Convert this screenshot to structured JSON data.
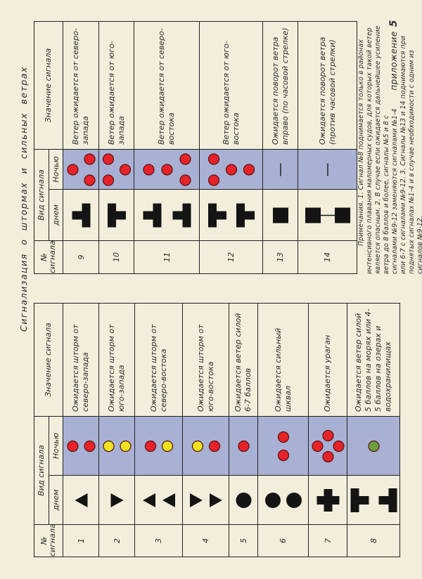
{
  "title": "Сигнализация о штормах и сильных ветрах",
  "appendix": {
    "label": "приложение",
    "number": "5"
  },
  "headers": {
    "number": "№ сигнала",
    "kind": "Вид сигнала",
    "day": "днем",
    "night": "Ночью",
    "meaning": "Значение сигнала"
  },
  "colors": {
    "red": "#e52329",
    "yellow": "#f1e21e",
    "green": "#6b9f3e",
    "night_background": "#a8b1d3",
    "shape": "#141414"
  },
  "left": {
    "rows": [
      {
        "number": "1",
        "day": {
          "shapes": [
            "cone-up"
          ],
          "layout": "single"
        },
        "night": {
          "lights": [
            "red",
            "red"
          ],
          "layout": "vertical"
        },
        "meaning": "Ожидается шторм от северо-запада"
      },
      {
        "number": "2",
        "day": {
          "shapes": [
            "cone-down"
          ],
          "layout": "single"
        },
        "night": {
          "lights": [
            "yellow",
            "yellow"
          ],
          "layout": "vertical"
        },
        "meaning": "Ожидается шторм от юго-запада"
      },
      {
        "number": "3",
        "day": {
          "shapes": [
            "cone-up",
            "cone-up"
          ],
          "layout": "vertical"
        },
        "night": {
          "lights": [
            "red",
            "yellow"
          ],
          "layout": "vertical"
        },
        "meaning": "Ожидается шторм от северо-востока"
      },
      {
        "number": "4",
        "day": {
          "shapes": [
            "cone-down",
            "cone-down"
          ],
          "layout": "vertical"
        },
        "night": {
          "lights": [
            "yellow",
            "red"
          ],
          "layout": "vertical"
        },
        "meaning": "Ожидается шторм от юго-востока"
      },
      {
        "number": "5",
        "day": {
          "shapes": [
            "ball"
          ],
          "layout": "single"
        },
        "night": {
          "lights": [
            "red"
          ],
          "layout": "single"
        },
        "meaning": "Ожидается ветер силой 6-7 баллов"
      },
      {
        "number": "6",
        "day": {
          "shapes": [
            "ball",
            "ball"
          ],
          "layout": "vertical"
        },
        "night": {
          "lights": [
            "red",
            "red"
          ],
          "layout": "horizontal"
        },
        "meaning": "Ожидается сильный шквал"
      },
      {
        "number": "7",
        "day": {
          "shapes": [
            "cross"
          ],
          "layout": "single"
        },
        "night": {
          "lights": [
            "red",
            "red",
            "red",
            "red"
          ],
          "layout": "diamond"
        },
        "meaning": "Ожидается ураган"
      },
      {
        "number": "8",
        "day": {
          "shapes": [
            "t-shape",
            "inverted-t-shape"
          ],
          "layout": "vertical"
        },
        "night": {
          "lights": [
            "green"
          ],
          "layout": "single"
        },
        "meaning": "Ожидается ветер силой 5 баллов на морях или 4-5 баллов на озерах и водохранилищах"
      }
    ]
  },
  "right": {
    "rows": [
      {
        "number": "9",
        "day": {
          "shapes": [
            "inverted-t-shape"
          ],
          "layout": "single"
        },
        "night": {
          "lights": [
            "red",
            "red",
            "red"
          ],
          "layout": "triangle-up"
        },
        "meaning": "Ветер ожидается от северо-запада"
      },
      {
        "number": "10",
        "day": {
          "shapes": [
            "t-shape"
          ],
          "layout": "single"
        },
        "night": {
          "lights": [
            "red",
            "red",
            "red"
          ],
          "layout": "triangle-down"
        },
        "meaning": "Ветер ожидается от юго-запада"
      },
      {
        "number": "11",
        "day": {
          "shapes": [
            "inverted-t-shape",
            "inverted-t-shape"
          ],
          "layout": "vertical"
        },
        "night": {
          "lights": [
            "red",
            "red",
            "red",
            "red"
          ],
          "layout": "two-over-pair"
        },
        "meaning": "Ветер ожидается от северо-востока"
      },
      {
        "number": "12",
        "day": {
          "shapes": [
            "t-shape",
            "t-shape"
          ],
          "layout": "vertical"
        },
        "night": {
          "lights": [
            "red",
            "red",
            "red",
            "red"
          ],
          "layout": "pair-over-two"
        },
        "meaning": "Ветер ожидается от юго-востока"
      },
      {
        "number": "13",
        "day": {
          "shapes": [
            "square"
          ],
          "layout": "single"
        },
        "night": {
          "lights": [],
          "layout": "none"
        },
        "meaning": "Ожидается поворот ветра вправо (по часовой стрелке)"
      },
      {
        "number": "14",
        "day": {
          "shapes": [
            "square",
            "square"
          ],
          "layout": "vertical-joined"
        },
        "night": {
          "lights": [],
          "layout": "none"
        },
        "meaning": "Ожидается поворот ветра (против часовой стрелки)"
      }
    ]
  },
  "notes": "Примечания. 1. Сигнал №8 поднимается только в районах интенсивного плавания маломерных судов, для которых такой ветер является опасным. 2. В случае если ожидается дальнейшее усиление ветра до 8 баллов и более, сигналы №5 и 8 с сигналами №9-12 заменяются сигналами №1-4 или 6-7 с сигналами №9-12. 3. Сигналы №13 и 14 поднимаются при поднятых сигналах №1-4 и в случае необходимости с одним из сигналов №9-12."
}
